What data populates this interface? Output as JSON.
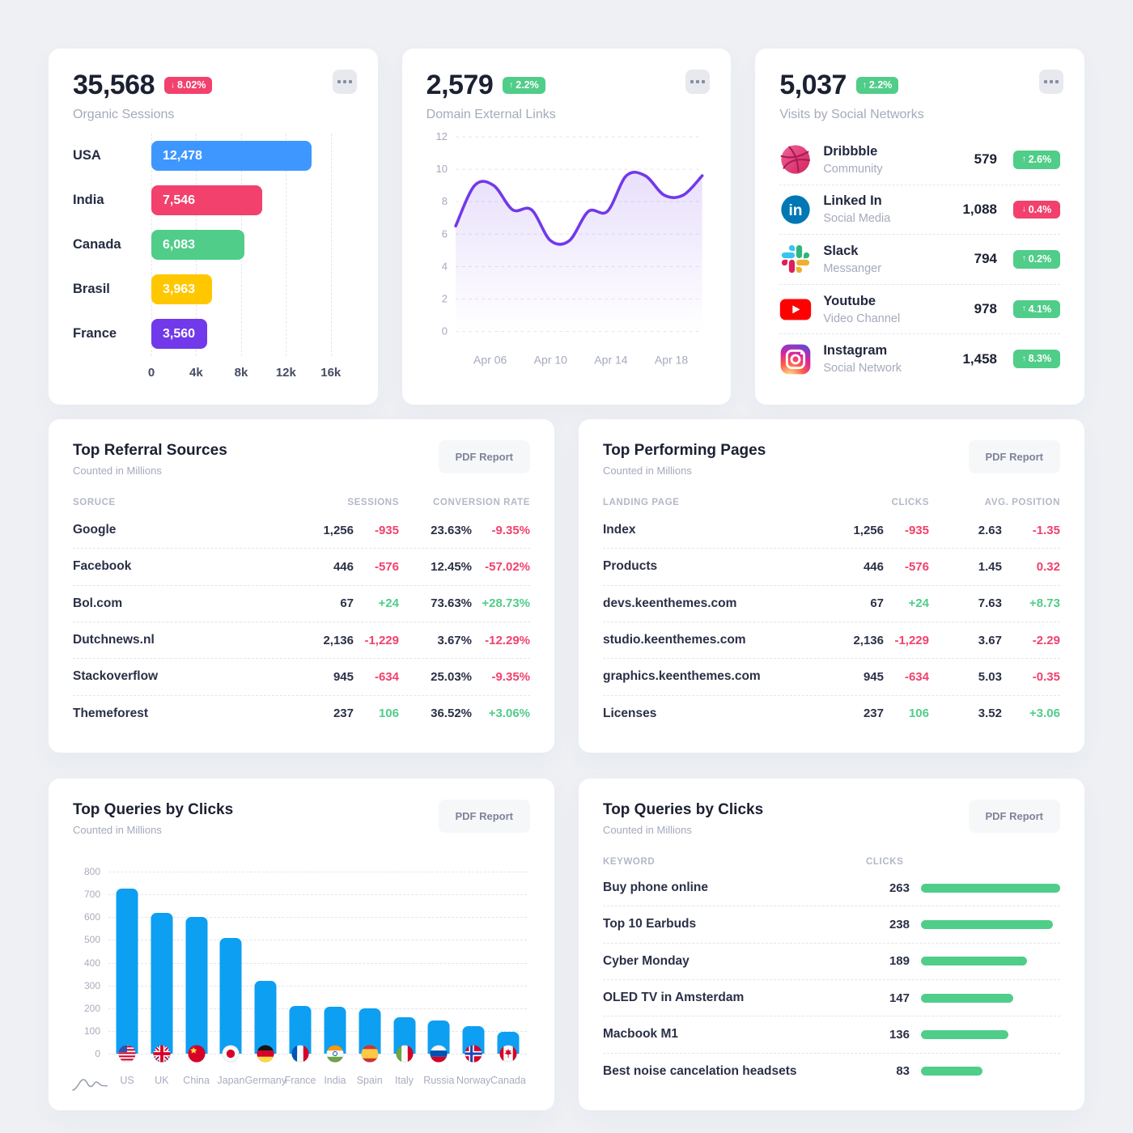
{
  "colors": {
    "bg": "#eef0f4",
    "card": "#ffffff",
    "dark": "#1b2032",
    "muted": "#a5aabc",
    "red": "#f1416c",
    "green": "#50cd89",
    "purple": "#7239ea",
    "blue": "#3e97ff",
    "azure": "#0d9ff2",
    "yellow": "#ffc700"
  },
  "cards": {
    "organic_sessions": {
      "value": "35,568",
      "delta": "8.02%",
      "delta_dir": "down",
      "subtitle": "Organic Sessions",
      "chart_data": {
        "type": "bar-horizontal",
        "categories": [
          "USA",
          "India",
          "Canada",
          "Brasil",
          "France"
        ],
        "values": [
          12478,
          7546,
          6083,
          3963,
          3560
        ],
        "value_labels": [
          "12,478",
          "7,546",
          "6,083",
          "3,963",
          "3,560"
        ],
        "bar_render_pct": [
          84,
          58.2,
          48.8,
          31.8,
          29.4
        ],
        "bar_colors": [
          "#3e97ff",
          "#f1416c",
          "#50cd89",
          "#ffc700",
          "#7239ea"
        ],
        "x_ticks": [
          "0",
          "4k",
          "8k",
          "12k",
          "16k"
        ],
        "x_tick_pct": [
          0,
          23.5,
          47.1,
          70.6,
          94.1
        ],
        "xlim": [
          0,
          17000
        ],
        "grid": "vertical-dashed"
      }
    },
    "external_links": {
      "value": "2,579",
      "delta": "2.2%",
      "delta_dir": "up",
      "subtitle": "Domain External Links",
      "chart_data": {
        "type": "area-line",
        "values": [
          6.5,
          9.0,
          9.0,
          7.5,
          7.5,
          5.6,
          5.6,
          7.4,
          7.4,
          9.6,
          9.6,
          8.4,
          8.4,
          9.6
        ],
        "ylim": [
          0,
          12
        ],
        "y_ticks": [
          12,
          10,
          8,
          6,
          4,
          2,
          0
        ],
        "x_ticks": [
          "Apr 06",
          "Apr 10",
          "Apr 14",
          "Apr 18"
        ],
        "x_tick_pct": [
          14,
          38.5,
          63,
          87.5
        ],
        "color": "#7239ea",
        "grid": "horizontal-dashed"
      }
    },
    "social": {
      "value": "5,037",
      "delta": "2.2%",
      "delta_dir": "up",
      "subtitle": "Visits by Social Networks",
      "items": [
        {
          "icon": "dribbble",
          "name": "Dribbble",
          "kind": "Community",
          "value": "579",
          "delta": "2.6%",
          "dir": "up"
        },
        {
          "icon": "linkedin",
          "name": "Linked In",
          "kind": "Social Media",
          "value": "1,088",
          "delta": "0.4%",
          "dir": "down"
        },
        {
          "icon": "slack",
          "name": "Slack",
          "kind": "Messanger",
          "value": "794",
          "delta": "0.2%",
          "dir": "up"
        },
        {
          "icon": "youtube",
          "name": "Youtube",
          "kind": "Video Channel",
          "value": "978",
          "delta": "4.1%",
          "dir": "up"
        },
        {
          "icon": "instagram",
          "name": "Instagram",
          "kind": "Social Network",
          "value": "1,458",
          "delta": "8.3%",
          "dir": "up"
        }
      ]
    },
    "referral": {
      "title": "Top Referral Sources",
      "subtitle": "Counted in Millions",
      "button": "PDF Report",
      "headers": [
        "SORUCE",
        "SESSIONS",
        "CONVERSION RATE"
      ],
      "rows": [
        {
          "name": "Google",
          "v1": "1,256",
          "d1": "-935",
          "d1_dir": "down",
          "v2": "23.63%",
          "d2": "-9.35%",
          "d2_dir": "down"
        },
        {
          "name": "Facebook",
          "v1": "446",
          "d1": "-576",
          "d1_dir": "down",
          "v2": "12.45%",
          "d2": "-57.02%",
          "d2_dir": "down"
        },
        {
          "name": "Bol.com",
          "v1": "67",
          "d1": "+24",
          "d1_dir": "up",
          "v2": "73.63%",
          "d2": "+28.73%",
          "d2_dir": "up"
        },
        {
          "name": "Dutchnews.nl",
          "v1": "2,136",
          "d1": "-1,229",
          "d1_dir": "down",
          "v2": "3.67%",
          "d2": "-12.29%",
          "d2_dir": "down"
        },
        {
          "name": "Stackoverflow",
          "v1": "945",
          "d1": "-634",
          "d1_dir": "down",
          "v2": "25.03%",
          "d2": "-9.35%",
          "d2_dir": "down"
        },
        {
          "name": "Themeforest",
          "v1": "237",
          "d1": "106",
          "d1_dir": "up",
          "v2": "36.52%",
          "d2": "+3.06%",
          "d2_dir": "up"
        }
      ]
    },
    "pages": {
      "title": "Top Performing Pages",
      "subtitle": "Counted in Millions",
      "button": "PDF Report",
      "headers": [
        "LANDING PAGE",
        "CLICKS",
        "AVG. POSITION"
      ],
      "rows": [
        {
          "name": "Index",
          "v1": "1,256",
          "d1": "-935",
          "d1_dir": "down",
          "v2": "2.63",
          "d2": "-1.35",
          "d2_dir": "down"
        },
        {
          "name": "Products",
          "v1": "446",
          "d1": "-576",
          "d1_dir": "down",
          "v2": "1.45",
          "d2": "0.32",
          "d2_dir": "down"
        },
        {
          "name": "devs.keenthemes.com",
          "v1": "67",
          "d1": "+24",
          "d1_dir": "up",
          "v2": "7.63",
          "d2": "+8.73",
          "d2_dir": "up"
        },
        {
          "name": "studio.keenthemes.com",
          "v1": "2,136",
          "d1": "-1,229",
          "d1_dir": "down",
          "v2": "3.67",
          "d2": "-2.29",
          "d2_dir": "down"
        },
        {
          "name": "graphics.keenthemes.com",
          "v1": "945",
          "d1": "-634",
          "d1_dir": "down",
          "v2": "5.03",
          "d2": "-0.35",
          "d2_dir": "down"
        },
        {
          "name": "Licenses",
          "v1": "237",
          "d1": "106",
          "d1_dir": "up",
          "v2": "3.52",
          "d2": "+3.06",
          "d2_dir": "up"
        }
      ]
    },
    "queries_chart": {
      "title": "Top Queries by Clicks",
      "subtitle": "Counted in Millions",
      "button": "PDF Report",
      "chart_data": {
        "type": "bar",
        "categories": [
          "US",
          "UK",
          "China",
          "Japan",
          "Germany",
          "France",
          "India",
          "Spain",
          "Italy",
          "Russia",
          "Norway",
          "Canada"
        ],
        "flags": [
          "us",
          "uk",
          "china",
          "japan",
          "germany",
          "france",
          "india",
          "spain",
          "italy",
          "russia",
          "norway",
          "canada"
        ],
        "values": [
          725,
          620,
          600,
          510,
          320,
          210,
          205,
          200,
          160,
          145,
          120,
          97
        ],
        "ylim": [
          0,
          800
        ],
        "y_ticks": [
          800,
          700,
          600,
          500,
          400,
          300,
          200,
          100,
          0
        ],
        "color": "#0d9ff2",
        "grid": "horizontal-dashed"
      }
    },
    "queries_list": {
      "title": "Top Queries by Clicks",
      "subtitle": "Counted in Millions",
      "button": "PDF Report",
      "headers": [
        "KEYWORD",
        "CLICKS"
      ],
      "rows": [
        {
          "keyword": "Buy phone online",
          "clicks": "263",
          "bar_pct": 100
        },
        {
          "keyword": "Top 10 Earbuds",
          "clicks": "238",
          "bar_pct": 95
        },
        {
          "keyword": "Cyber Monday",
          "clicks": "189",
          "bar_pct": 76
        },
        {
          "keyword": "OLED TV in Amsterdam",
          "clicks": "147",
          "bar_pct": 66
        },
        {
          "keyword": "Macbook M1",
          "clicks": "136",
          "bar_pct": 63
        },
        {
          "keyword": "Best noise cancelation headsets",
          "clicks": "83",
          "bar_pct": 44
        }
      ]
    }
  }
}
